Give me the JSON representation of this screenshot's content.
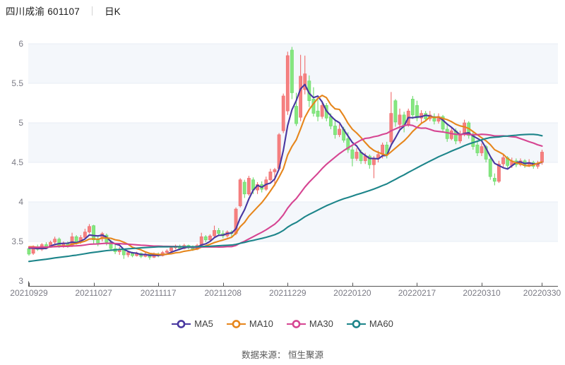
{
  "header": {
    "title": "四川成渝 601107",
    "period": "日K"
  },
  "footer": {
    "source": "数据来源： 恒生聚源"
  },
  "chart_data": {
    "type": "candlestick",
    "title": "四川成渝 601107 日K",
    "ylim": [
      3,
      6
    ],
    "y_ticks": [
      3,
      3.5,
      4,
      4.5,
      5,
      5.5,
      6
    ],
    "x_ticks": [
      {
        "index": 0,
        "label": "20210929"
      },
      {
        "index": 15,
        "label": "20211027"
      },
      {
        "index": 30,
        "label": "20211117"
      },
      {
        "index": 45,
        "label": "20211208"
      },
      {
        "index": 60,
        "label": "20211229"
      },
      {
        "index": 75,
        "label": "20220120"
      },
      {
        "index": 90,
        "label": "20220217"
      },
      {
        "index": 105,
        "label": "20220310"
      },
      {
        "index": 119,
        "label": "20220330"
      }
    ],
    "grid": true,
    "legend_position": "bottom",
    "colors": {
      "up": "#f58080",
      "up_edge": "#f06c6c",
      "down": "#85e77f",
      "down_edge": "#6cd96c",
      "band": "#f4f7fb",
      "grid": "#e7ecf5",
      "axis": "#555555",
      "tick_text": "#7b7b85"
    },
    "series": [
      {
        "name": "MA5",
        "window": 5,
        "color": "#4837a0"
      },
      {
        "name": "MA10",
        "window": 10,
        "color": "#e6861c"
      },
      {
        "name": "MA30",
        "window": 30,
        "color": "#d64592"
      },
      {
        "name": "MA60",
        "window": 60,
        "color": "#1d858a"
      }
    ],
    "candles": [
      [
        3.41,
        3.43,
        3.32,
        3.34
      ],
      [
        3.35,
        3.45,
        3.33,
        3.43
      ],
      [
        3.43,
        3.46,
        3.38,
        3.4
      ],
      [
        3.4,
        3.48,
        3.38,
        3.46
      ],
      [
        3.46,
        3.49,
        3.41,
        3.43
      ],
      [
        3.43,
        3.51,
        3.42,
        3.49
      ],
      [
        3.49,
        3.56,
        3.46,
        3.53
      ],
      [
        3.53,
        3.55,
        3.42,
        3.45
      ],
      [
        3.44,
        3.5,
        3.42,
        3.48
      ],
      [
        3.48,
        3.5,
        3.42,
        3.44
      ],
      [
        3.44,
        3.61,
        3.43,
        3.56
      ],
      [
        3.56,
        3.58,
        3.46,
        3.49
      ],
      [
        3.49,
        3.58,
        3.47,
        3.55
      ],
      [
        3.55,
        3.66,
        3.53,
        3.62
      ],
      [
        3.62,
        3.72,
        3.6,
        3.69
      ],
      [
        3.7,
        3.71,
        3.47,
        3.52
      ],
      [
        3.52,
        3.56,
        3.44,
        3.47
      ],
      [
        3.54,
        3.62,
        3.5,
        3.6
      ],
      [
        3.58,
        3.6,
        3.45,
        3.49
      ],
      [
        3.49,
        3.52,
        3.38,
        3.41
      ],
      [
        3.41,
        3.46,
        3.34,
        3.37
      ],
      [
        3.37,
        3.43,
        3.33,
        3.4
      ],
      [
        3.4,
        3.41,
        3.28,
        3.33
      ],
      [
        3.33,
        3.38,
        3.3,
        3.36
      ],
      [
        3.36,
        3.37,
        3.3,
        3.32
      ],
      [
        3.32,
        3.37,
        3.31,
        3.35
      ],
      [
        3.35,
        3.36,
        3.29,
        3.31
      ],
      [
        3.31,
        3.36,
        3.3,
        3.34
      ],
      [
        3.34,
        3.35,
        3.27,
        3.3
      ],
      [
        3.3,
        3.36,
        3.29,
        3.34
      ],
      [
        3.34,
        3.36,
        3.3,
        3.32
      ],
      [
        3.32,
        3.38,
        3.31,
        3.36
      ],
      [
        3.36,
        3.4,
        3.34,
        3.38
      ],
      [
        3.38,
        3.44,
        3.36,
        3.42
      ],
      [
        3.42,
        3.46,
        3.4,
        3.44
      ],
      [
        3.44,
        3.46,
        3.39,
        3.41
      ],
      [
        3.41,
        3.47,
        3.4,
        3.45
      ],
      [
        3.45,
        3.46,
        3.4,
        3.42
      ],
      [
        3.42,
        3.45,
        3.38,
        3.4
      ],
      [
        3.4,
        3.47,
        3.39,
        3.45
      ],
      [
        3.45,
        3.61,
        3.44,
        3.56
      ],
      [
        3.56,
        3.58,
        3.49,
        3.52
      ],
      [
        3.52,
        3.59,
        3.5,
        3.57
      ],
      [
        3.57,
        3.7,
        3.55,
        3.64
      ],
      [
        3.64,
        3.67,
        3.57,
        3.6
      ],
      [
        3.6,
        3.64,
        3.54,
        3.57
      ],
      [
        3.57,
        3.64,
        3.55,
        3.62
      ],
      [
        3.62,
        3.64,
        3.56,
        3.6
      ],
      [
        3.6,
        3.93,
        3.58,
        3.91
      ],
      [
        3.95,
        4.3,
        3.93,
        4.28
      ],
      [
        4.25,
        4.28,
        4.05,
        4.1
      ],
      [
        4.1,
        4.33,
        4.08,
        4.3
      ],
      [
        4.28,
        4.31,
        4.1,
        4.15
      ],
      [
        4.15,
        4.25,
        4.1,
        4.22
      ],
      [
        4.22,
        4.26,
        4.12,
        4.16
      ],
      [
        4.16,
        4.32,
        4.14,
        4.28
      ],
      [
        4.28,
        4.42,
        4.26,
        4.38
      ],
      [
        4.38,
        4.43,
        4.2,
        4.41
      ],
      [
        4.42,
        4.87,
        4.4,
        4.85
      ],
      [
        4.9,
        5.37,
        4.87,
        5.34
      ],
      [
        5.15,
        5.9,
        5.1,
        5.85
      ],
      [
        5.92,
        5.96,
        5.3,
        5.38
      ],
      [
        5.21,
        5.38,
        4.96,
        4.99
      ],
      [
        5.07,
        5.86,
        5.02,
        5.59
      ],
      [
        5.42,
        5.85,
        5.36,
        5.62
      ],
      [
        5.53,
        5.6,
        5.2,
        5.28
      ],
      [
        5.3,
        5.45,
        5.08,
        5.12
      ],
      [
        5.15,
        5.3,
        5.02,
        5.08
      ],
      [
        5.08,
        5.28,
        5.05,
        5.22
      ],
      [
        5.22,
        5.25,
        5.02,
        5.06
      ],
      [
        5.08,
        5.12,
        4.92,
        4.96
      ],
      [
        4.96,
        5.05,
        4.8,
        4.85
      ],
      [
        4.85,
        4.98,
        4.82,
        4.92
      ],
      [
        4.92,
        4.95,
        4.75,
        4.78
      ],
      [
        4.8,
        4.88,
        4.62,
        4.66
      ],
      [
        4.66,
        4.72,
        4.45,
        4.55
      ],
      [
        4.55,
        4.68,
        4.52,
        4.63
      ],
      [
        4.63,
        4.66,
        4.48,
        4.52
      ],
      [
        4.52,
        4.62,
        4.48,
        4.58
      ],
      [
        4.58,
        4.6,
        4.42,
        4.47
      ],
      [
        4.47,
        4.58,
        4.3,
        4.55
      ],
      [
        4.55,
        4.65,
        4.5,
        4.6
      ],
      [
        4.6,
        4.75,
        4.55,
        4.72
      ],
      [
        4.72,
        4.76,
        4.55,
        4.6
      ],
      [
        4.76,
        5.39,
        4.7,
        5.12
      ],
      [
        5.28,
        5.3,
        4.95,
        5.01
      ],
      [
        4.98,
        5.18,
        4.92,
        5.1
      ],
      [
        5.1,
        5.14,
        4.88,
        4.96
      ],
      [
        4.98,
        5.18,
        4.95,
        5.15
      ],
      [
        5.3,
        5.34,
        5.05,
        5.1
      ],
      [
        5.22,
        5.28,
        5.02,
        5.06
      ],
      [
        5.06,
        5.16,
        5.0,
        5.12
      ],
      [
        5.12,
        5.15,
        5.02,
        5.05
      ],
      [
        5.05,
        5.15,
        5.02,
        5.1
      ],
      [
        5.08,
        5.12,
        4.98,
        5.02
      ],
      [
        5.02,
        5.12,
        4.99,
        5.08
      ],
      [
        5.08,
        5.1,
        4.88,
        4.92
      ],
      [
        4.92,
        4.98,
        4.76,
        4.8
      ],
      [
        4.8,
        4.95,
        4.78,
        4.9
      ],
      [
        4.9,
        4.93,
        4.73,
        4.77
      ],
      [
        4.77,
        4.9,
        4.74,
        4.86
      ],
      [
        4.86,
        5.04,
        4.83,
        5.0
      ],
      [
        5.0,
        5.02,
        4.8,
        4.84
      ],
      [
        4.84,
        4.88,
        4.66,
        4.7
      ],
      [
        4.72,
        4.78,
        4.58,
        4.62
      ],
      [
        4.62,
        4.74,
        4.58,
        4.7
      ],
      [
        4.7,
        4.72,
        4.5,
        4.54
      ],
      [
        4.54,
        4.56,
        4.28,
        4.32
      ],
      [
        4.3,
        4.36,
        4.21,
        4.26
      ],
      [
        4.26,
        4.52,
        4.24,
        4.48
      ],
      [
        4.48,
        4.6,
        4.44,
        4.56
      ],
      [
        4.56,
        4.58,
        4.42,
        4.46
      ],
      [
        4.46,
        4.56,
        4.43,
        4.52
      ],
      [
        4.52,
        4.55,
        4.44,
        4.47
      ],
      [
        4.47,
        4.55,
        4.45,
        4.52
      ],
      [
        4.52,
        4.54,
        4.43,
        4.46
      ],
      [
        4.46,
        4.54,
        4.44,
        4.5
      ],
      [
        4.5,
        4.52,
        4.42,
        4.45
      ],
      [
        4.45,
        4.52,
        4.42,
        4.48
      ],
      [
        4.5,
        4.66,
        4.47,
        4.63
      ]
    ],
    "ma_seed_closes": [
      2.98,
      3.0,
      3.02,
      3.04,
      3.01,
      3.03,
      3.05,
      3.07,
      3.04,
      3.06,
      3.08,
      3.05,
      3.07,
      3.09,
      3.06,
      3.08,
      3.1,
      3.07,
      3.09,
      3.11,
      3.08,
      3.1,
      3.12,
      3.09,
      3.11,
      3.08,
      3.1,
      3.12,
      3.14,
      3.11,
      3.36,
      3.38,
      3.4,
      3.42,
      3.41,
      3.43,
      3.4,
      3.42,
      3.44,
      3.41,
      3.43,
      3.45,
      3.42,
      3.4,
      3.44,
      3.42,
      3.44,
      3.41,
      3.43,
      3.45,
      3.44,
      3.46,
      3.43,
      3.45,
      3.47,
      3.44,
      3.42,
      3.45,
      3.43
    ]
  }
}
